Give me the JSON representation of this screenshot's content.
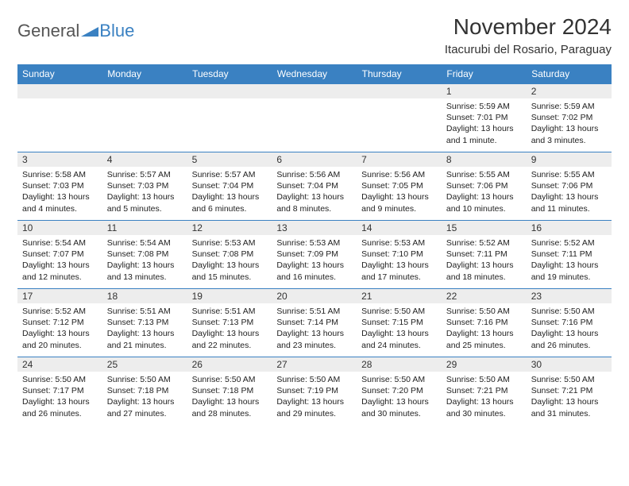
{
  "logo": {
    "text1": "General",
    "text2": "Blue"
  },
  "header": {
    "month": "November 2024",
    "location": "Itacurubi del Rosario, Paraguay"
  },
  "colors": {
    "header_bg": "#3a81c2",
    "header_text": "#ffffff",
    "daynum_bg": "#ededed",
    "border": "#3a81c2",
    "body_text": "#222222",
    "logo_gray": "#555555",
    "logo_blue": "#3a81c2"
  },
  "weekdays": [
    "Sunday",
    "Monday",
    "Tuesday",
    "Wednesday",
    "Thursday",
    "Friday",
    "Saturday"
  ],
  "weeks": [
    [
      {
        "blank": true
      },
      {
        "blank": true
      },
      {
        "blank": true
      },
      {
        "blank": true
      },
      {
        "blank": true
      },
      {
        "day": "1",
        "sunrise": "Sunrise: 5:59 AM",
        "sunset": "Sunset: 7:01 PM",
        "daylight": "Daylight: 13 hours and 1 minute."
      },
      {
        "day": "2",
        "sunrise": "Sunrise: 5:59 AM",
        "sunset": "Sunset: 7:02 PM",
        "daylight": "Daylight: 13 hours and 3 minutes."
      }
    ],
    [
      {
        "day": "3",
        "sunrise": "Sunrise: 5:58 AM",
        "sunset": "Sunset: 7:03 PM",
        "daylight": "Daylight: 13 hours and 4 minutes."
      },
      {
        "day": "4",
        "sunrise": "Sunrise: 5:57 AM",
        "sunset": "Sunset: 7:03 PM",
        "daylight": "Daylight: 13 hours and 5 minutes."
      },
      {
        "day": "5",
        "sunrise": "Sunrise: 5:57 AM",
        "sunset": "Sunset: 7:04 PM",
        "daylight": "Daylight: 13 hours and 6 minutes."
      },
      {
        "day": "6",
        "sunrise": "Sunrise: 5:56 AM",
        "sunset": "Sunset: 7:04 PM",
        "daylight": "Daylight: 13 hours and 8 minutes."
      },
      {
        "day": "7",
        "sunrise": "Sunrise: 5:56 AM",
        "sunset": "Sunset: 7:05 PM",
        "daylight": "Daylight: 13 hours and 9 minutes."
      },
      {
        "day": "8",
        "sunrise": "Sunrise: 5:55 AM",
        "sunset": "Sunset: 7:06 PM",
        "daylight": "Daylight: 13 hours and 10 minutes."
      },
      {
        "day": "9",
        "sunrise": "Sunrise: 5:55 AM",
        "sunset": "Sunset: 7:06 PM",
        "daylight": "Daylight: 13 hours and 11 minutes."
      }
    ],
    [
      {
        "day": "10",
        "sunrise": "Sunrise: 5:54 AM",
        "sunset": "Sunset: 7:07 PM",
        "daylight": "Daylight: 13 hours and 12 minutes."
      },
      {
        "day": "11",
        "sunrise": "Sunrise: 5:54 AM",
        "sunset": "Sunset: 7:08 PM",
        "daylight": "Daylight: 13 hours and 13 minutes."
      },
      {
        "day": "12",
        "sunrise": "Sunrise: 5:53 AM",
        "sunset": "Sunset: 7:08 PM",
        "daylight": "Daylight: 13 hours and 15 minutes."
      },
      {
        "day": "13",
        "sunrise": "Sunrise: 5:53 AM",
        "sunset": "Sunset: 7:09 PM",
        "daylight": "Daylight: 13 hours and 16 minutes."
      },
      {
        "day": "14",
        "sunrise": "Sunrise: 5:53 AM",
        "sunset": "Sunset: 7:10 PM",
        "daylight": "Daylight: 13 hours and 17 minutes."
      },
      {
        "day": "15",
        "sunrise": "Sunrise: 5:52 AM",
        "sunset": "Sunset: 7:11 PM",
        "daylight": "Daylight: 13 hours and 18 minutes."
      },
      {
        "day": "16",
        "sunrise": "Sunrise: 5:52 AM",
        "sunset": "Sunset: 7:11 PM",
        "daylight": "Daylight: 13 hours and 19 minutes."
      }
    ],
    [
      {
        "day": "17",
        "sunrise": "Sunrise: 5:52 AM",
        "sunset": "Sunset: 7:12 PM",
        "daylight": "Daylight: 13 hours and 20 minutes."
      },
      {
        "day": "18",
        "sunrise": "Sunrise: 5:51 AM",
        "sunset": "Sunset: 7:13 PM",
        "daylight": "Daylight: 13 hours and 21 minutes."
      },
      {
        "day": "19",
        "sunrise": "Sunrise: 5:51 AM",
        "sunset": "Sunset: 7:13 PM",
        "daylight": "Daylight: 13 hours and 22 minutes."
      },
      {
        "day": "20",
        "sunrise": "Sunrise: 5:51 AM",
        "sunset": "Sunset: 7:14 PM",
        "daylight": "Daylight: 13 hours and 23 minutes."
      },
      {
        "day": "21",
        "sunrise": "Sunrise: 5:50 AM",
        "sunset": "Sunset: 7:15 PM",
        "daylight": "Daylight: 13 hours and 24 minutes."
      },
      {
        "day": "22",
        "sunrise": "Sunrise: 5:50 AM",
        "sunset": "Sunset: 7:16 PM",
        "daylight": "Daylight: 13 hours and 25 minutes."
      },
      {
        "day": "23",
        "sunrise": "Sunrise: 5:50 AM",
        "sunset": "Sunset: 7:16 PM",
        "daylight": "Daylight: 13 hours and 26 minutes."
      }
    ],
    [
      {
        "day": "24",
        "sunrise": "Sunrise: 5:50 AM",
        "sunset": "Sunset: 7:17 PM",
        "daylight": "Daylight: 13 hours and 26 minutes."
      },
      {
        "day": "25",
        "sunrise": "Sunrise: 5:50 AM",
        "sunset": "Sunset: 7:18 PM",
        "daylight": "Daylight: 13 hours and 27 minutes."
      },
      {
        "day": "26",
        "sunrise": "Sunrise: 5:50 AM",
        "sunset": "Sunset: 7:18 PM",
        "daylight": "Daylight: 13 hours and 28 minutes."
      },
      {
        "day": "27",
        "sunrise": "Sunrise: 5:50 AM",
        "sunset": "Sunset: 7:19 PM",
        "daylight": "Daylight: 13 hours and 29 minutes."
      },
      {
        "day": "28",
        "sunrise": "Sunrise: 5:50 AM",
        "sunset": "Sunset: 7:20 PM",
        "daylight": "Daylight: 13 hours and 30 minutes."
      },
      {
        "day": "29",
        "sunrise": "Sunrise: 5:50 AM",
        "sunset": "Sunset: 7:21 PM",
        "daylight": "Daylight: 13 hours and 30 minutes."
      },
      {
        "day": "30",
        "sunrise": "Sunrise: 5:50 AM",
        "sunset": "Sunset: 7:21 PM",
        "daylight": "Daylight: 13 hours and 31 minutes."
      }
    ]
  ]
}
